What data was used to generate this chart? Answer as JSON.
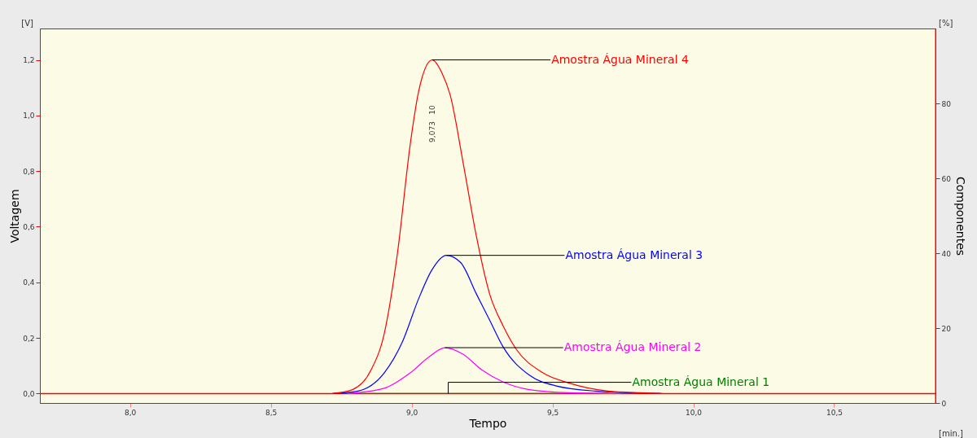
{
  "chart_data": {
    "type": "line",
    "xlabel": "Tempo",
    "ylabel": "Voltagem",
    "y2label": "Componentes",
    "xlim": [
      7.68,
      10.86
    ],
    "ylim": [
      -0.034,
      1.313
    ],
    "y2lim": [
      0,
      100
    ],
    "xticks": [
      {
        "value": 8,
        "label": "8,0"
      },
      {
        "value": 8.5,
        "label": "8,5"
      },
      {
        "value": 9,
        "label": "9,0"
      },
      {
        "value": 9.5,
        "label": "9,5"
      },
      {
        "value": 10,
        "label": "10,0"
      },
      {
        "value": 10.5,
        "label": "10,5"
      }
    ],
    "yticks": [
      {
        "value": 0,
        "label": "0,0"
      },
      {
        "value": 0.2,
        "label": "0,2"
      },
      {
        "value": 0.4,
        "label": "0,4"
      },
      {
        "value": 0.6,
        "label": "0,6"
      },
      {
        "value": 0.8,
        "label": "0,8"
      },
      {
        "value": 1,
        "label": "1,0"
      },
      {
        "value": 1.2,
        "label": "1,2"
      }
    ],
    "y2ticks": [
      0,
      20,
      40,
      60,
      80
    ],
    "grid": false,
    "ref_lines": [
      {
        "axis": "y",
        "value": 0,
        "color": "#ff0000"
      }
    ],
    "annotations": [
      "[V]",
      "[%]",
      "[min.]",
      "9,073",
      "10"
    ],
    "series": [
      {
        "name": "Amostra Água Mineral 1",
        "color": "#008000",
        "x": [
          8.72,
          9.13,
          9.7
        ],
        "values": [
          0,
          0,
          0
        ]
      },
      {
        "name": "Amostra Água Mineral 2",
        "color": "#ff00ff",
        "x": [
          8.772,
          8.903,
          8.996,
          9.062,
          9.118,
          9.183,
          9.249,
          9.324,
          9.418,
          9.558,
          9.745
        ],
        "values": [
          0,
          0.019,
          0.075,
          0.132,
          0.165,
          0.141,
          0.085,
          0.042,
          0.014,
          0.003,
          0
        ]
      },
      {
        "name": "Amostra Água Mineral 3",
        "color": "#0000ff",
        "x": [
          8.72,
          8.809,
          8.903,
          8.968,
          9.024,
          9.071,
          9.123,
          9.174,
          9.23,
          9.277,
          9.324,
          9.418,
          9.511,
          9.652,
          9.885
        ],
        "values": [
          0,
          0.009,
          0.075,
          0.188,
          0.339,
          0.443,
          0.497,
          0.471,
          0.358,
          0.264,
          0.169,
          0.066,
          0.028,
          0.009,
          0
        ]
      },
      {
        "name": "Amostra Água Mineral 4",
        "color": "#ff0000",
        "x": [
          8.719,
          8.79,
          8.856,
          8.903,
          8.949,
          8.996,
          9.024,
          9.073,
          9.109,
          9.137,
          9.183,
          9.23,
          9.277,
          9.324,
          9.371,
          9.464,
          9.558,
          9.698,
          9.89
        ],
        "values": [
          0,
          0.014,
          0.085,
          0.217,
          0.5,
          0.904,
          1.083,
          1.2,
          1.15,
          1.073,
          0.829,
          0.565,
          0.358,
          0.245,
          0.16,
          0.076,
          0.038,
          0.009,
          0
        ]
      }
    ]
  }
}
